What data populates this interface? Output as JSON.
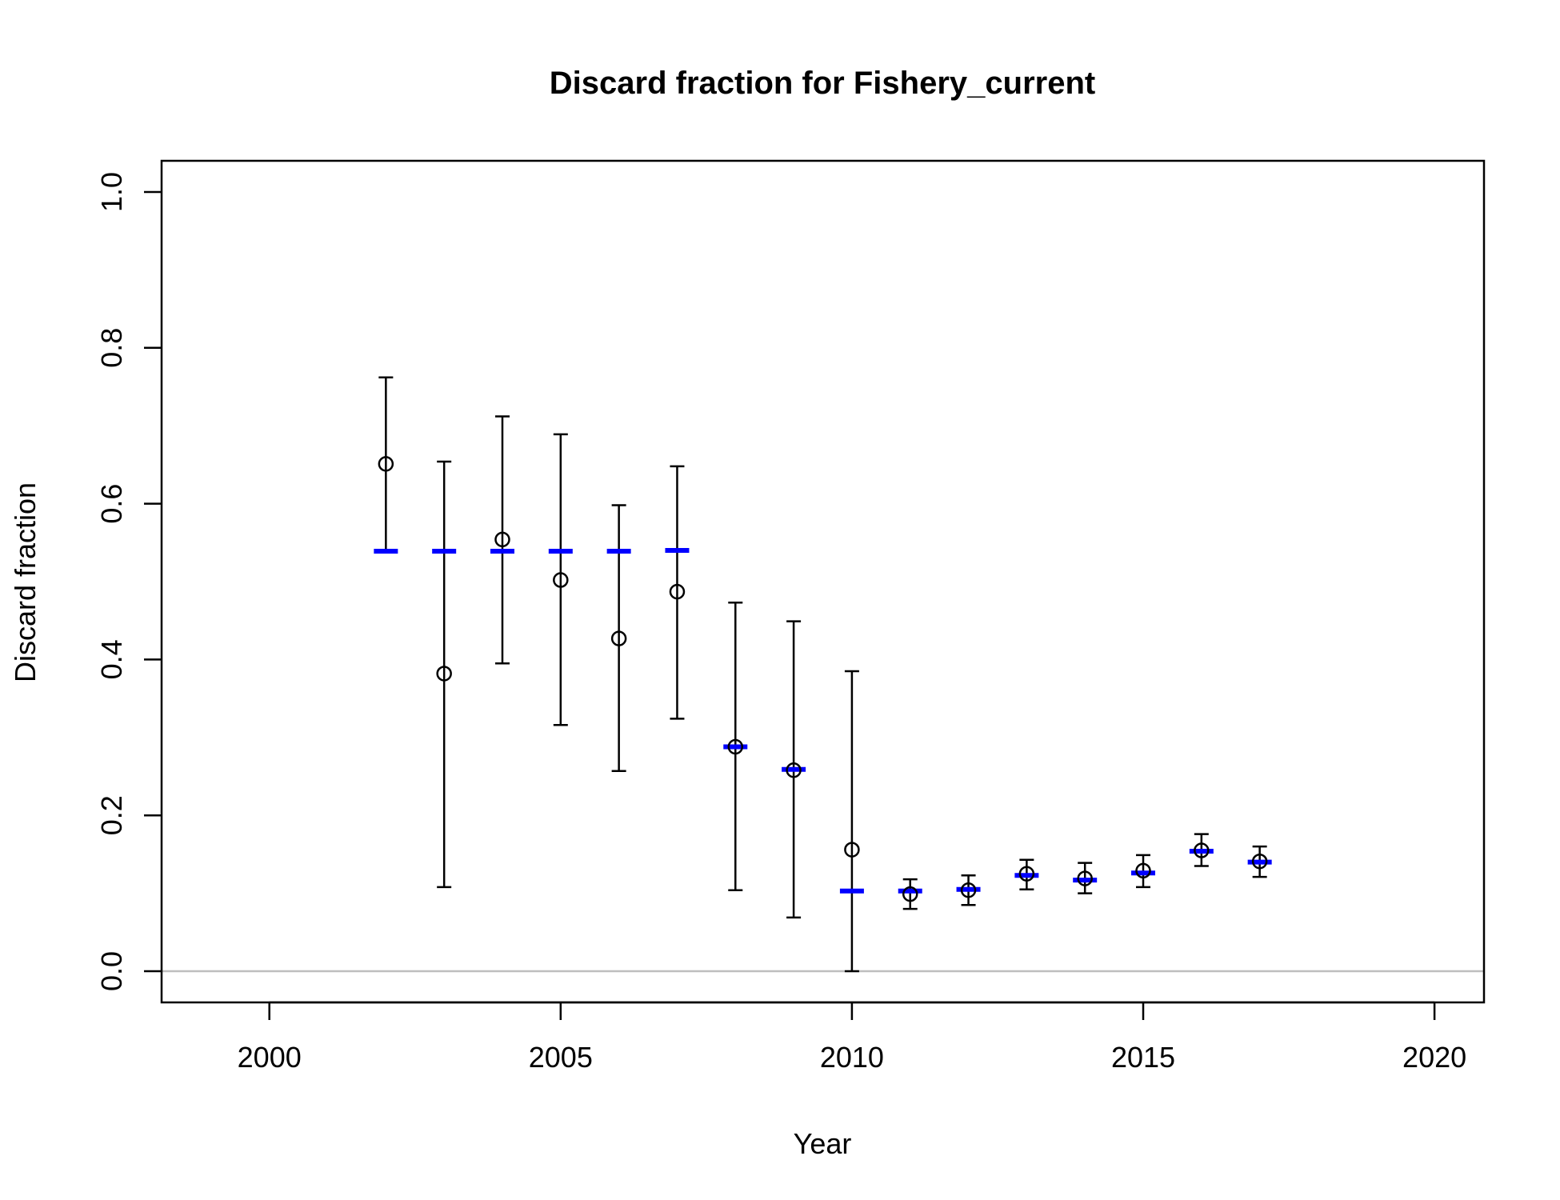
{
  "chart_data": {
    "type": "scatter",
    "title": "Discard fraction for Fishery_current",
    "xlabel": "Year",
    "ylabel": "Discard fraction",
    "xlim": [
      1998.15,
      2020.85
    ],
    "ylim": [
      -0.04,
      1.04
    ],
    "x_ticks": [
      2000,
      2005,
      2010,
      2015,
      2020
    ],
    "y_ticks": [
      0.0,
      0.2,
      0.4,
      0.6,
      0.8,
      1.0
    ],
    "y_tick_labels": [
      "0.0",
      "0.2",
      "0.4",
      "0.6",
      "0.8",
      "1.0"
    ],
    "x_tick_labels": [
      "2000",
      "2005",
      "2010",
      "2015",
      "2020"
    ],
    "grid": false,
    "reference_line": {
      "y": 0.0,
      "color": "#bebebe"
    },
    "colors": {
      "observed": "#000000",
      "expected": "#0000ff"
    },
    "series": [
      {
        "type": "errorbar-points",
        "x": [
          2002,
          2003,
          2004,
          2005,
          2006,
          2007,
          2008,
          2009,
          2010,
          2011,
          2012,
          2013,
          2014,
          2015,
          2016,
          2017
        ],
        "y": [
          0.651,
          0.382,
          0.554,
          0.502,
          0.427,
          0.487,
          0.288,
          0.258,
          0.156,
          0.099,
          0.104,
          0.125,
          0.119,
          0.129,
          0.155,
          0.141
        ],
        "lower": [
          0.54,
          0.108,
          0.395,
          0.316,
          0.257,
          0.324,
          0.104,
          0.069,
          0.0,
          0.08,
          0.085,
          0.105,
          0.1,
          0.108,
          0.135,
          0.121
        ],
        "upper": [
          0.762,
          0.654,
          0.712,
          0.689,
          0.598,
          0.648,
          0.473,
          0.449,
          0.385,
          0.118,
          0.123,
          0.143,
          0.139,
          0.149,
          0.176,
          0.16
        ]
      },
      {
        "type": "dash-marks",
        "x": [
          2002,
          2003,
          2004,
          2005,
          2006,
          2007,
          2008,
          2009,
          2010,
          2011,
          2012,
          2013,
          2014,
          2015,
          2016,
          2017
        ],
        "y": [
          0.539,
          0.539,
          0.539,
          0.539,
          0.539,
          0.54,
          0.288,
          0.259,
          0.103,
          0.103,
          0.105,
          0.123,
          0.117,
          0.126,
          0.154,
          0.14
        ]
      }
    ]
  }
}
